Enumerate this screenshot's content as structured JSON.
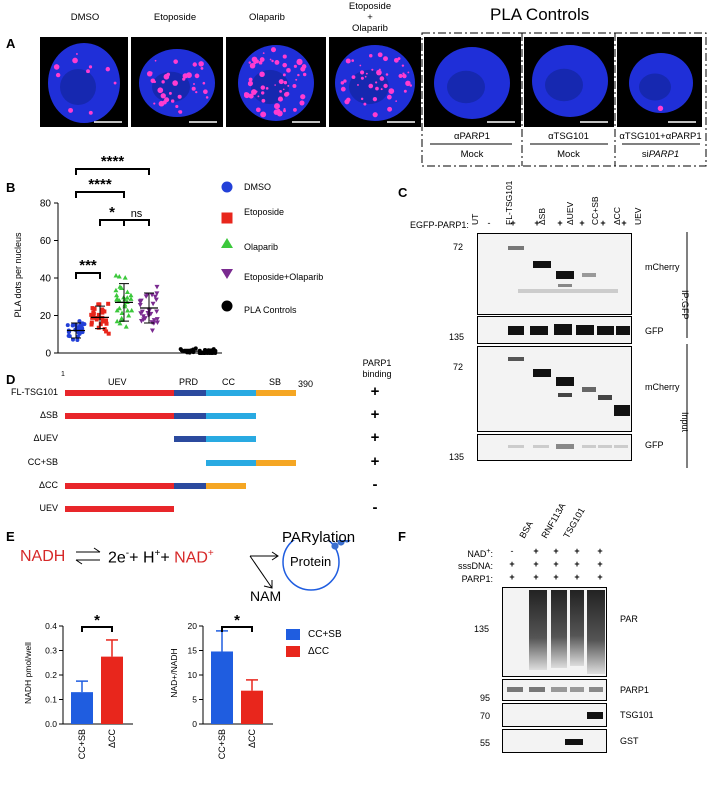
{
  "panelA": {
    "label": "A",
    "conditions": [
      "DMSO",
      "Etoposide",
      "Olaparib",
      "Etoposide",
      "+",
      "Olaparib"
    ],
    "pla_controls_title": "PLA Controls",
    "controls": [
      {
        "antibody": "αPARP1",
        "treatment": "Mock"
      },
      {
        "antibody": "αTSG101",
        "treatment": "Mock"
      },
      {
        "antibody": "αTSG101+αPARP1",
        "treatment_prefix": "si",
        "treatment_gene": "PARP1"
      }
    ]
  },
  "panelB": {
    "label": "B",
    "significance": [
      "****",
      "****",
      "*",
      "ns",
      "***"
    ],
    "legend": [
      "DMSO",
      "Etoposide",
      "Olaparib",
      "Etoposide+Olaparib",
      "PLA Controls"
    ],
    "colors": {
      "DMSO": "#2340d8",
      "Etoposide": "#e8261c",
      "Olaparib": "#3cc83c",
      "Etoposide+Olaparib": "#7a2a90",
      "PLA Controls": "#000000"
    },
    "chart_data": {
      "type": "scatter",
      "ylabel": "PLA dots per nucleus",
      "ylim": [
        0,
        80
      ],
      "yticks": [
        "0",
        "20",
        "40",
        "60",
        "80"
      ],
      "groups": [
        {
          "name": "DMSO",
          "mean": 12,
          "sd": 4
        },
        {
          "name": "Etoposide",
          "mean": 19,
          "sd": 6
        },
        {
          "name": "Olaparib",
          "mean": 27,
          "sd": 10
        },
        {
          "name": "Etoposide+Olaparib",
          "mean": 24,
          "sd": 8
        },
        {
          "name": "PLA Controls",
          "mean": 1,
          "sd": 1
        },
        {
          "name": "PLA Controls",
          "mean": 0,
          "sd": 0
        },
        {
          "name": "PLA Controls",
          "mean": 1,
          "sd": 1
        }
      ]
    }
  },
  "panelC": {
    "label": "C",
    "lanes": [
      "UT",
      "FL-TSG101",
      "ΔSB",
      "ΔUEV",
      "CC+SB",
      "ΔCC",
      "UEV"
    ],
    "egfp_label": "EGFP-PARP1:",
    "egfp_signs": [
      "-",
      "+",
      "+",
      "+",
      "+",
      "+",
      "+"
    ],
    "blots": [
      {
        "marker": "72",
        "label": "mCherry"
      },
      {
        "marker": "135",
        "label": "GFP"
      },
      {
        "marker": "72",
        "label": "mCherry"
      },
      {
        "marker": "135",
        "label": "GFP"
      }
    ],
    "side_labels": [
      "IP:GFP",
      "Input"
    ]
  },
  "panelD": {
    "label": "D",
    "start": "1",
    "end": "390",
    "domains": [
      "UEV",
      "PRD",
      "CC",
      "SB"
    ],
    "binding_header": [
      "PARP1",
      "binding"
    ],
    "constructs": [
      {
        "name": "FL-TSG101",
        "binding": "+"
      },
      {
        "name": "ΔSB",
        "binding": "+"
      },
      {
        "name": "ΔUEV",
        "binding": "+"
      },
      {
        "name": "CC+SB",
        "binding": "+"
      },
      {
        "name": "ΔCC",
        "binding": "-"
      },
      {
        "name": "UEV",
        "binding": "-"
      }
    ],
    "colors": {
      "UEV": "#e8262a",
      "PRD": "#2b4a9e",
      "CC": "#29aae2",
      "SB": "#f5a623"
    }
  },
  "panelE": {
    "label": "E",
    "scheme": {
      "nadh": "NADH",
      "two_e": "2e",
      "minus": "-",
      "plus1": "+",
      "h": "H",
      "hplus": "+",
      "plus2": "+",
      "nad": "NAD",
      "nadplus": "+",
      "protein": "Protein",
      "parylation": "PARylation",
      "nam": "NAM"
    },
    "legend": [
      "CC+SB",
      "ΔCC"
    ],
    "colors": {
      "CC+SB": "#1f5de0",
      "ΔCC": "#e8261c"
    },
    "sig": [
      "*",
      "*"
    ],
    "chart_data": [
      {
        "type": "bar",
        "ylabel": "NADH pmol/well",
        "categories": [
          "CC+SB",
          "ΔCC"
        ],
        "values": [
          0.13,
          0.275
        ],
        "errors": [
          0.045,
          0.068
        ],
        "ylim": [
          0,
          0.4
        ],
        "yticks": [
          "0.0",
          "0.1",
          "0.2",
          "0.3",
          "0.4"
        ]
      },
      {
        "type": "bar",
        "ylabel": "NAD+/NADH",
        "categories": [
          "CC+SB",
          "ΔCC"
        ],
        "values": [
          14.8,
          6.8
        ],
        "errors": [
          4.2,
          2.2
        ],
        "ylim": [
          0,
          20
        ],
        "yticks": [
          "0",
          "5",
          "10",
          "15",
          "20"
        ]
      }
    ]
  },
  "panelF": {
    "label": "F",
    "columns": [
      "BSA",
      "RNF113A",
      "TSG101"
    ],
    "rows": [
      {
        "label": "NAD",
        "sup": "+",
        "post": ":",
        "signs": [
          "-",
          "+",
          "+",
          "+",
          "+"
        ]
      },
      {
        "label": "sssDNA:",
        "signs": [
          "+",
          "+",
          "+",
          "+",
          "+"
        ]
      },
      {
        "label": "PARP1:",
        "signs": [
          "+",
          "+",
          "+",
          "+",
          "+"
        ]
      }
    ],
    "blots": [
      {
        "marker": "135",
        "label": "PAR"
      },
      {
        "marker": "95",
        "label": "PARP1"
      },
      {
        "marker": "70",
        "label": "TSG101"
      },
      {
        "marker": "55",
        "label": "GST"
      }
    ]
  }
}
